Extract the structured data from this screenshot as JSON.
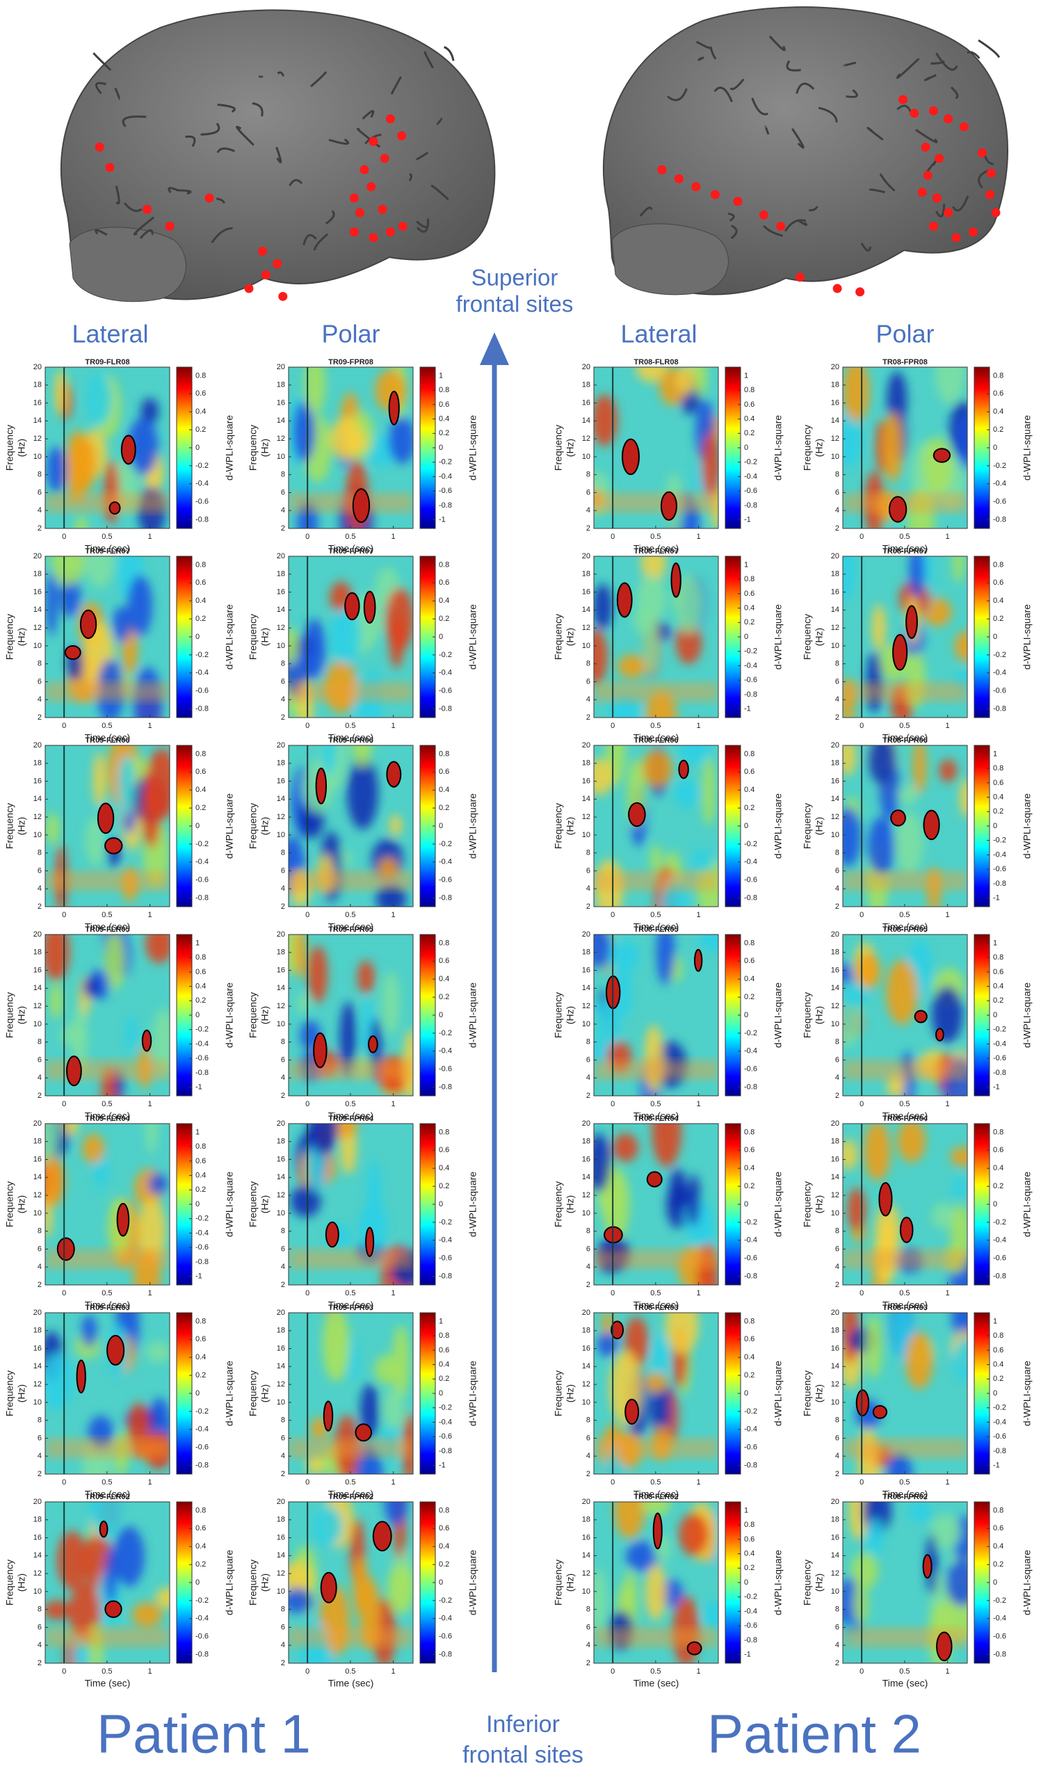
{
  "header": {
    "superior_label": [
      "Superior",
      "frontal sites"
    ],
    "inferior_label": [
      "Inferior",
      "frontal sites"
    ]
  },
  "axes": {
    "xlim": [
      -0.22,
      1.23
    ],
    "xticks": [
      0,
      0.5,
      1
    ],
    "xlabel": "Time (sec)",
    "ylim": [
      2,
      20
    ],
    "yticks": [
      2,
      4,
      6,
      8,
      10,
      12,
      14,
      16,
      18,
      20
    ],
    "ylabel": "Frequency",
    "yunit": "(Hz)",
    "colorbar_label": "d-WPLI-square"
  },
  "patients": [
    {
      "name": "Patient 1",
      "columns": [
        {
          "label": "Lateral",
          "panels": [
            {
              "title": "TR09-FLR08",
              "colorbar_ticks": [
                0.8,
                0.6,
                0.4,
                0.2,
                0,
                -0.2,
                -0.4,
                -0.6,
                -0.8
              ]
            },
            {
              "title": "TR09-FLR07",
              "colorbar_ticks": [
                0.8,
                0.6,
                0.4,
                0.2,
                0,
                -0.2,
                -0.4,
                -0.6,
                -0.8
              ]
            },
            {
              "title": "TR09-FLR06",
              "colorbar_ticks": [
                0.8,
                0.6,
                0.4,
                0.2,
                0,
                -0.2,
                -0.4,
                -0.6,
                -0.8
              ]
            },
            {
              "title": "TR09-FLR05",
              "colorbar_ticks": [
                1,
                0.8,
                0.6,
                0.4,
                0.2,
                0,
                -0.2,
                -0.4,
                -0.6,
                -0.8,
                -1
              ]
            },
            {
              "title": "TR09-FLR04",
              "colorbar_ticks": [
                1,
                0.8,
                0.6,
                0.4,
                0.2,
                0,
                -0.2,
                -0.4,
                -0.6,
                -0.8,
                -1
              ]
            },
            {
              "title": "TR09-FLR03",
              "colorbar_ticks": [
                0.8,
                0.6,
                0.4,
                0.2,
                0,
                -0.2,
                -0.4,
                -0.6,
                -0.8
              ]
            },
            {
              "title": "TR09-FLR02",
              "colorbar_ticks": [
                0.8,
                0.6,
                0.4,
                0.2,
                0,
                -0.2,
                -0.4,
                -0.6,
                -0.8
              ]
            }
          ]
        },
        {
          "label": "Polar",
          "panels": [
            {
              "title": "TR09-FPR08",
              "colorbar_ticks": [
                1,
                0.8,
                0.6,
                0.4,
                0.2,
                0,
                -0.2,
                -0.4,
                -0.6,
                -0.8,
                -1
              ]
            },
            {
              "title": "TR09-FPR07",
              "colorbar_ticks": [
                0.8,
                0.6,
                0.4,
                0.2,
                0,
                -0.2,
                -0.4,
                -0.6,
                -0.8
              ]
            },
            {
              "title": "TR09-FPR06",
              "colorbar_ticks": [
                0.8,
                0.6,
                0.4,
                0.2,
                0,
                -0.2,
                -0.4,
                -0.6,
                -0.8
              ]
            },
            {
              "title": "TR09-FPR05",
              "colorbar_ticks": [
                0.8,
                0.6,
                0.4,
                0.2,
                0,
                -0.2,
                -0.4,
                -0.6,
                -0.8
              ]
            },
            {
              "title": "TR09-FPR04",
              "colorbar_ticks": [
                0.8,
                0.6,
                0.4,
                0.2,
                0,
                -0.2,
                -0.4,
                -0.6,
                -0.8
              ]
            },
            {
              "title": "TR09-FPR03",
              "colorbar_ticks": [
                1,
                0.8,
                0.6,
                0.4,
                0.2,
                0,
                -0.2,
                -0.4,
                -0.6,
                -0.8,
                -1
              ]
            },
            {
              "title": "TR09-FPR02",
              "colorbar_ticks": [
                0.8,
                0.6,
                0.4,
                0.2,
                0,
                -0.2,
                -0.4,
                -0.6,
                -0.8
              ]
            }
          ]
        }
      ]
    },
    {
      "name": "Patient 2",
      "columns": [
        {
          "label": "Lateral",
          "panels": [
            {
              "title": "TR08-FLR08",
              "colorbar_ticks": [
                1,
                0.8,
                0.6,
                0.4,
                0.2,
                0,
                -0.2,
                -0.4,
                -0.6,
                -0.8,
                -1
              ]
            },
            {
              "title": "TR08-FLR07",
              "colorbar_ticks": [
                1,
                0.8,
                0.6,
                0.4,
                0.2,
                0,
                -0.2,
                -0.4,
                -0.6,
                -0.8,
                -1
              ]
            },
            {
              "title": "TR08-FLR06",
              "colorbar_ticks": [
                0.8,
                0.6,
                0.4,
                0.2,
                0,
                -0.2,
                -0.4,
                -0.6,
                -0.8
              ]
            },
            {
              "title": "TR08-FLR05",
              "colorbar_ticks": [
                0.8,
                0.6,
                0.4,
                0.2,
                0,
                -0.2,
                -0.4,
                -0.6,
                -0.8
              ]
            },
            {
              "title": "TR08-FLR04",
              "colorbar_ticks": [
                0.8,
                0.6,
                0.4,
                0.2,
                0,
                -0.2,
                -0.4,
                -0.6,
                -0.8
              ]
            },
            {
              "title": "TR08-FLR03",
              "colorbar_ticks": [
                0.8,
                0.6,
                0.4,
                0.2,
                0,
                -0.2,
                -0.4,
                -0.6,
                -0.8
              ]
            },
            {
              "title": "TR08-FLR02",
              "colorbar_ticks": [
                1,
                0.8,
                0.6,
                0.4,
                0.2,
                0,
                -0.2,
                -0.4,
                -0.6,
                -0.8,
                -1
              ]
            }
          ]
        },
        {
          "label": "Polar",
          "panels": [
            {
              "title": "TR08-FPR08",
              "colorbar_ticks": [
                0.8,
                0.6,
                0.4,
                0.2,
                0,
                -0.2,
                -0.4,
                -0.6,
                -0.8
              ]
            },
            {
              "title": "TR08-FPR07",
              "colorbar_ticks": [
                0.8,
                0.6,
                0.4,
                0.2,
                0,
                -0.2,
                -0.4,
                -0.6,
                -0.8
              ]
            },
            {
              "title": "TR08-FPR06",
              "colorbar_ticks": [
                1,
                0.8,
                0.6,
                0.4,
                0.2,
                0,
                -0.2,
                -0.4,
                -0.6,
                -0.8,
                -1
              ]
            },
            {
              "title": "TR08-FPR05",
              "colorbar_ticks": [
                1,
                0.8,
                0.6,
                0.4,
                0.2,
                0,
                -0.2,
                -0.4,
                -0.6,
                -0.8,
                -1
              ]
            },
            {
              "title": "TR08-FPR04",
              "colorbar_ticks": [
                0.8,
                0.6,
                0.4,
                0.2,
                0,
                -0.2,
                -0.4,
                -0.6,
                -0.8
              ]
            },
            {
              "title": "TR08-FPR03",
              "colorbar_ticks": [
                1,
                0.8,
                0.6,
                0.4,
                0.2,
                0,
                -0.2,
                -0.4,
                -0.6,
                -0.8,
                -1
              ]
            },
            {
              "title": "TR08-FPR02",
              "colorbar_ticks": [
                0.8,
                0.6,
                0.4,
                0.2,
                0,
                -0.2,
                -0.4,
                -0.6,
                -0.8
              ]
            }
          ]
        }
      ]
    }
  ]
}
